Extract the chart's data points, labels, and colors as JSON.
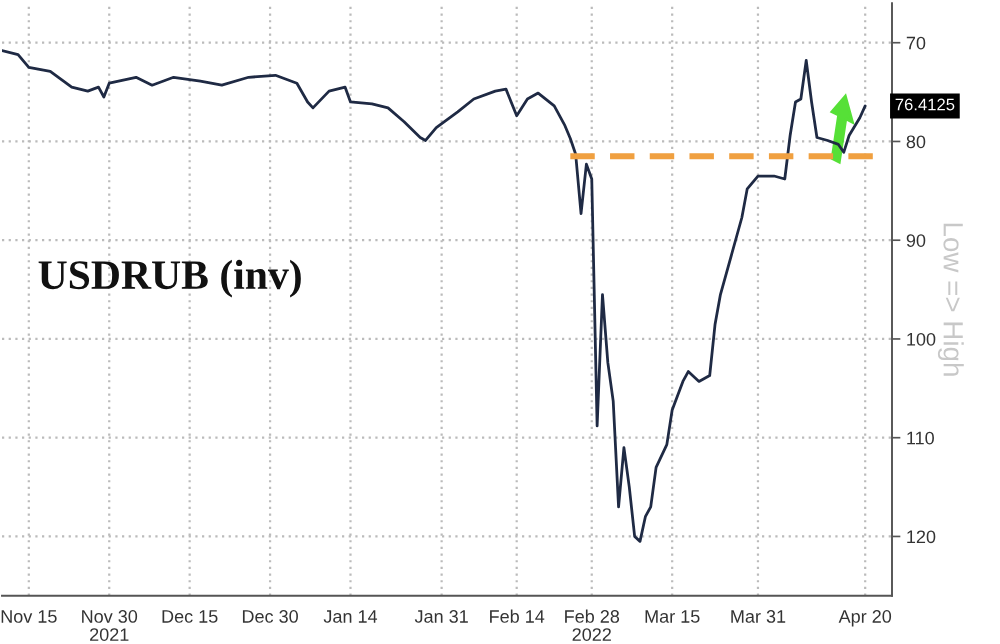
{
  "chart_data": {
    "type": "line",
    "annotations": [
      "USDRUB (inv)",
      {
        "text": "76.4125",
        "x": "2022-04-20",
        "y": 76.4
      }
    ],
    "ylabel": "Low => High",
    "x": [
      "2021-11-10",
      "2021-11-13",
      "2021-11-15",
      "2021-11-19",
      "2021-11-23",
      "2021-11-26",
      "2021-11-28",
      "2021-11-29",
      "2021-11-30",
      "2021-12-05",
      "2021-12-08",
      "2021-12-12",
      "2021-12-17",
      "2021-12-21",
      "2021-12-26",
      "2021-12-31",
      "2022-01-04",
      "2022-01-06",
      "2022-01-07",
      "2022-01-10",
      "2022-01-13",
      "2022-01-14",
      "2022-01-18",
      "2022-01-21",
      "2022-01-24",
      "2022-01-27",
      "2022-01-28",
      "2022-01-30",
      "2022-02-03",
      "2022-02-06",
      "2022-02-10",
      "2022-02-12",
      "2022-02-14",
      "2022-02-16",
      "2022-02-18",
      "2022-02-21",
      "2022-02-23",
      "2022-02-24",
      "2022-02-25",
      "2022-02-26",
      "2022-02-27",
      "2022-02-28",
      "2022-03-01",
      "2022-03-02",
      "2022-03-03",
      "2022-03-04",
      "2022-03-05",
      "2022-03-06",
      "2022-03-07",
      "2022-03-08",
      "2022-03-09",
      "2022-03-10",
      "2022-03-11",
      "2022-03-12",
      "2022-03-14",
      "2022-03-15",
      "2022-03-17",
      "2022-03-18",
      "2022-03-20",
      "2022-03-22",
      "2022-03-23",
      "2022-03-24",
      "2022-03-26",
      "2022-03-28",
      "2022-03-29",
      "2022-03-31",
      "2022-04-03",
      "2022-04-05",
      "2022-04-06",
      "2022-04-07",
      "2022-04-08",
      "2022-04-09",
      "2022-04-10",
      "2022-04-11",
      "2022-04-13",
      "2022-04-15",
      "2022-04-16",
      "2022-04-17",
      "2022-04-19",
      "2022-04-20"
    ],
    "series": [
      {
        "color": "#1f2a44",
        "values": [
          70.8,
          71.2,
          72.5,
          72.9,
          74.5,
          74.9,
          74.5,
          75.5,
          74.1,
          73.5,
          74.3,
          73.5,
          73.9,
          74.3,
          73.5,
          73.3,
          74.1,
          76.0,
          76.6,
          74.9,
          74.5,
          76.0,
          76.2,
          76.6,
          78.0,
          79.6,
          79.9,
          78.6,
          77.0,
          75.7,
          74.9,
          74.7,
          77.4,
          75.7,
          75.1,
          76.4,
          78.4,
          79.7,
          81.3,
          87.3,
          82.3,
          83.8,
          108.8,
          95.5,
          102.4,
          106.3,
          117,
          111,
          115,
          120,
          120.5,
          118,
          117,
          113,
          110.7,
          107.2,
          104.3,
          103.3,
          104.3,
          103.7,
          98.5,
          95.5,
          91.6,
          87.7,
          84.8,
          83.5,
          83.5,
          83.8,
          79.4,
          76.0,
          75.7,
          71.8,
          76.0,
          79.6,
          79.9,
          80.3,
          81.1,
          79.4,
          77.6,
          76.4
        ]
      },
      {
        "type": "line",
        "color": "#f0a040",
        "line_style": "dashed",
        "x": [
          "2022-02-24",
          "2022-04-22"
        ],
        "values": [
          81.5,
          81.5
        ]
      }
    ],
    "xlim": [
      "2021-11-10",
      "2022-04-25"
    ],
    "xticks": [
      {
        "value": "2021-11-15",
        "label": "Nov 15"
      },
      {
        "value": "2021-11-30",
        "label": "Nov 30\n2021"
      },
      {
        "value": "2021-12-15",
        "label": "Dec 15"
      },
      {
        "value": "2021-12-30",
        "label": "Dec 30"
      },
      {
        "value": "2022-01-14",
        "label": "Jan 14"
      },
      {
        "value": "2022-01-31",
        "label": "Jan 31"
      },
      {
        "value": "2022-02-14",
        "label": "Feb 14"
      },
      {
        "value": "2022-02-28",
        "label": "Feb 28\n2022"
      },
      {
        "value": "2022-03-15",
        "label": "Mar 15"
      },
      {
        "value": "2022-03-31",
        "label": "Mar 31"
      },
      {
        "value": "2022-04-20",
        "label": "Apr 20"
      }
    ],
    "ylim": [
      126,
      66
    ],
    "yticks": [
      70,
      80,
      90,
      100,
      110,
      120
    ],
    "grid": true,
    "marker": "none",
    "line_style": "solid"
  }
}
